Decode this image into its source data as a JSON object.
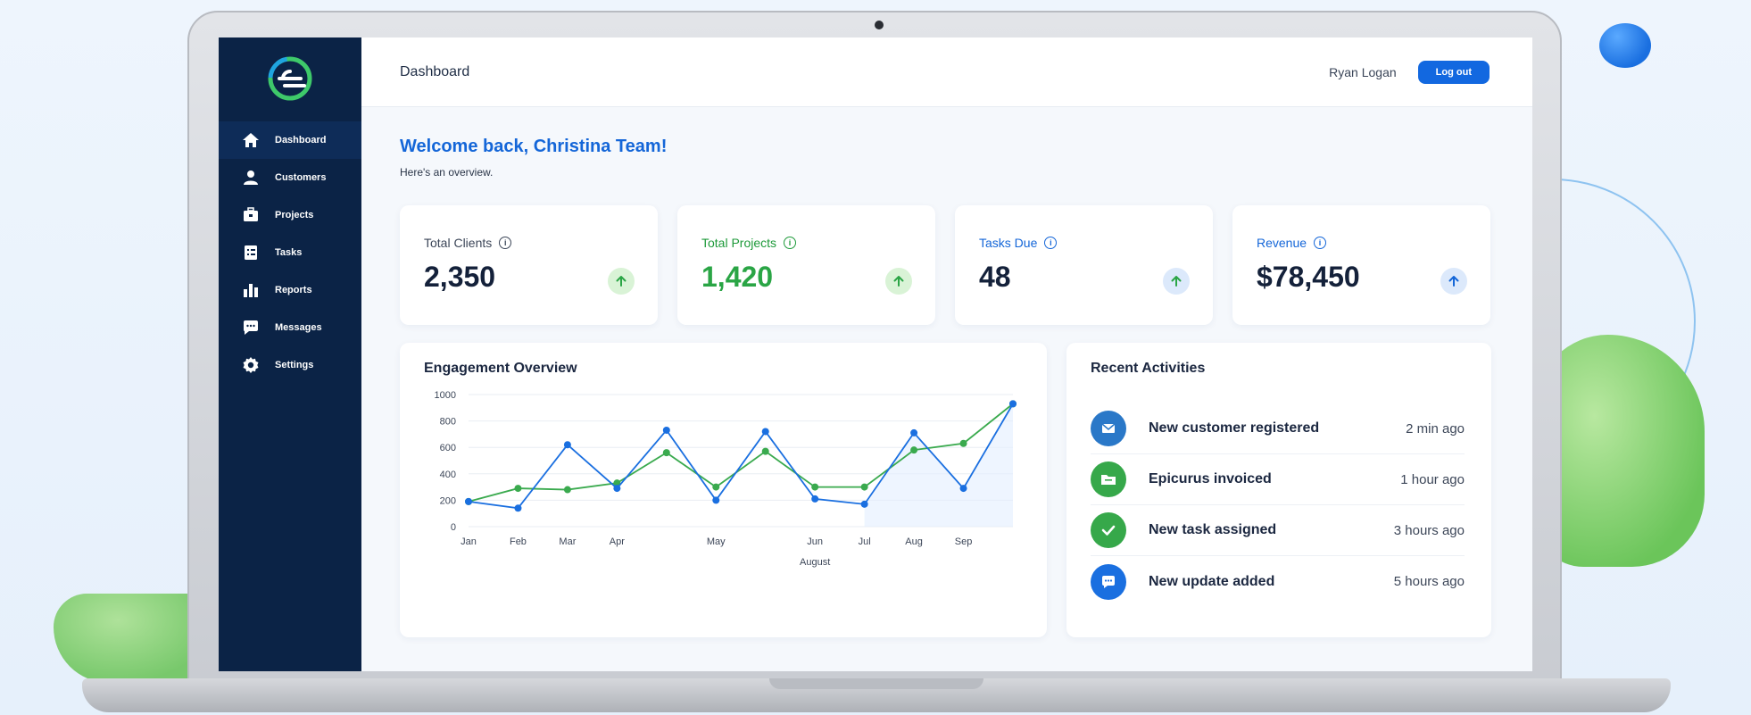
{
  "app": {
    "page_title": "Dashboard"
  },
  "header": {
    "user_name": "Ryan Logan",
    "logout_label": "Log out"
  },
  "sidebar": {
    "items": [
      {
        "label": "Dashboard",
        "icon": "home-icon",
        "active": true
      },
      {
        "label": "Customers",
        "icon": "user-icon",
        "active": false
      },
      {
        "label": "Projects",
        "icon": "briefcase-icon",
        "active": false
      },
      {
        "label": "Tasks",
        "icon": "checklist-icon",
        "active": false
      },
      {
        "label": "Reports",
        "icon": "bar-chart-icon",
        "active": false
      },
      {
        "label": "Messages",
        "icon": "chat-icon",
        "active": false
      },
      {
        "label": "Settings",
        "icon": "gear-icon",
        "active": false
      }
    ]
  },
  "welcome": {
    "title": "Welcome back, Christina Team!",
    "subtitle": "Here's an overview."
  },
  "stats": [
    {
      "label": "Total Clients",
      "value": "2,350",
      "trend": "up",
      "accent": "#1f2d45"
    },
    {
      "label": "Total Projects",
      "value": "1,420",
      "trend": "up",
      "accent": "#2aa545"
    },
    {
      "label": "Tasks Due",
      "value": "48",
      "trend": "up",
      "accent": "#1466d8"
    },
    {
      "label": "Revenue",
      "value": "$78,450",
      "trend": "up",
      "accent": "#1466d8"
    }
  ],
  "engagement": {
    "title": "Engagement Overview",
    "chart_data": {
      "type": "line",
      "categories": [
        "Jan",
        "Feb",
        "Mar",
        "Apr",
        "May",
        "Jun",
        "Jul",
        "Aug",
        "Sep"
      ],
      "x_extra_label": "August",
      "y_ticks": [
        0,
        200,
        400,
        600,
        800,
        1000
      ],
      "ylim": [
        0,
        1000
      ],
      "series": [
        {
          "color": "#1a6fe0",
          "points": [
            [
              0,
              190
            ],
            [
              1,
              140
            ],
            [
              2,
              620
            ],
            [
              3,
              290
            ],
            [
              4,
              730
            ],
            [
              5,
              200
            ],
            [
              6,
              720
            ],
            [
              7,
              210
            ],
            [
              8,
              170
            ],
            [
              9,
              710
            ],
            [
              10,
              290
            ],
            [
              11,
              930
            ]
          ]
        },
        {
          "color": "#3aaa4e",
          "points": [
            [
              0,
              190
            ],
            [
              1,
              290
            ],
            [
              2,
              280
            ],
            [
              3,
              330
            ],
            [
              4,
              560
            ],
            [
              5,
              300
            ],
            [
              6,
              570
            ],
            [
              7,
              300
            ],
            [
              8,
              300
            ],
            [
              9,
              580
            ],
            [
              10,
              630
            ],
            [
              11,
              930
            ]
          ]
        }
      ],
      "x_positions": [
        0,
        1,
        2,
        3,
        5,
        7,
        8,
        9,
        10
      ],
      "grid": true
    }
  },
  "activities": {
    "title": "Recent Activities",
    "items": [
      {
        "text": "New customer registered",
        "time": "2 min ago",
        "icon": "mail-icon",
        "color": "#2a78c8"
      },
      {
        "text": "Epicurus invoiced",
        "time": "1 hour ago",
        "icon": "folder-icon",
        "color": "#36a84a"
      },
      {
        "text": "New task assigned",
        "time": "3 hours ago",
        "icon": "check-icon",
        "color": "#36a84a"
      },
      {
        "text": "New update added",
        "time": "5 hours ago",
        "icon": "chat-bubble-icon",
        "color": "#1a6fe0"
      }
    ]
  }
}
